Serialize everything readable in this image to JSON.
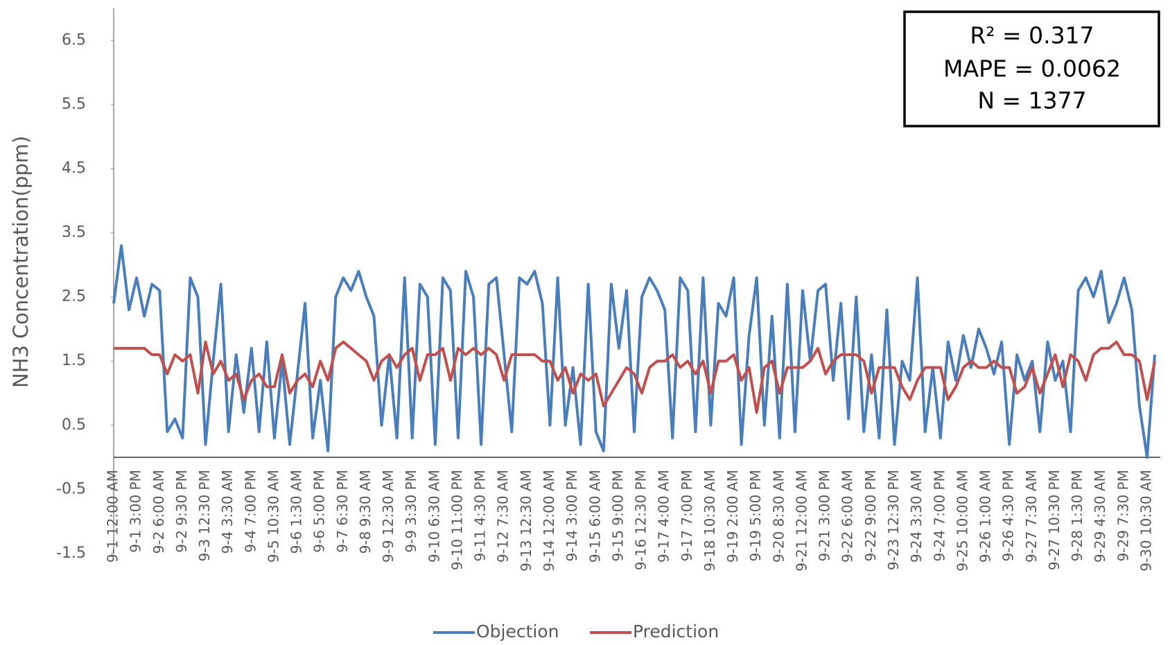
{
  "chart_data": {
    "type": "line",
    "y_label": "NH3 Concentration(ppm)",
    "annotations": [
      "R² = 0.317",
      "MAPE = 0.0062",
      "N = 1377"
    ],
    "categories": [
      "9-1 12:00 AM",
      null,
      null,
      "9-1 3:00 PM",
      null,
      null,
      "9-2 6:00 AM",
      null,
      null,
      "9-2 9:30 PM",
      null,
      null,
      "9-3 12:30 PM",
      null,
      null,
      "9-4 3:30 AM",
      null,
      null,
      "9-4 7:00 PM",
      null,
      null,
      "9-5 10:30 AM",
      null,
      null,
      "9-6 1:30 AM",
      null,
      null,
      "9-6 5:00 PM",
      null,
      null,
      "9-7 6:30 PM",
      null,
      null,
      "9-8 9:30 AM",
      null,
      null,
      "9-9 12:30 AM",
      null,
      null,
      "9-9 3:30 PM",
      null,
      null,
      "9-10 6:30 AM",
      null,
      null,
      "9-10 11:00 PM",
      null,
      null,
      "9-11 4:30 PM",
      null,
      null,
      "9-12 7:30 AM",
      null,
      null,
      "9-13 12:30 AM",
      null,
      null,
      "9-14 12:00 AM",
      null,
      null,
      "9-14 3:00 PM",
      null,
      null,
      "9-15 6:00 AM",
      null,
      null,
      "9-15 9:00 PM",
      null,
      null,
      "9-16 12:30 PM",
      null,
      null,
      "9-17 4:00 AM",
      null,
      null,
      "9-17 7:00 PM",
      null,
      null,
      "9-18 10:30 AM",
      null,
      null,
      "9-19 2:00 AM",
      null,
      null,
      "9-19 5:00 PM",
      null,
      null,
      "9-20 8:30 AM",
      null,
      null,
      "9-21 12:00 AM",
      null,
      null,
      "9-21 3:00 PM",
      null,
      null,
      "9-22 6:00 AM",
      null,
      null,
      "9-22 9:00 PM",
      null,
      null,
      "9-23 12:30 PM",
      null,
      null,
      "9-24 3:30 AM",
      null,
      null,
      "9-24 7:00 PM",
      null,
      null,
      "9-25 10:00 AM",
      null,
      null,
      "9-26 1:00 AM",
      null,
      null,
      "9-26 4:30 PM",
      null,
      null,
      "9-27 7:30 AM",
      null,
      null,
      "9-27 10:30 PM",
      null,
      null,
      "9-28 1:30 PM",
      null,
      null,
      "9-29 4:30 AM",
      null,
      null,
      "9-29 7:30 PM",
      null,
      null,
      "9-30 10:30 AM",
      null
    ],
    "series": [
      {
        "name": "Objection",
        "color": "#4a7ebb",
        "values": [
          2.4,
          3.3,
          2.3,
          2.8,
          2.2,
          2.7,
          2.6,
          0.4,
          0.6,
          0.3,
          2.8,
          2.5,
          0.2,
          1.5,
          2.7,
          0.4,
          1.6,
          0.7,
          1.7,
          0.4,
          1.8,
          0.3,
          1.5,
          0.2,
          1.3,
          2.4,
          0.3,
          1.2,
          0.1,
          2.5,
          2.8,
          2.6,
          2.9,
          2.5,
          2.2,
          0.5,
          1.6,
          0.3,
          2.8,
          0.3,
          2.7,
          2.5,
          0.2,
          2.8,
          2.6,
          0.3,
          2.9,
          2.5,
          0.2,
          2.7,
          2.8,
          1.6,
          0.4,
          2.8,
          2.7,
          2.9,
          2.4,
          0.5,
          2.8,
          0.5,
          1.4,
          0.2,
          2.7,
          0.4,
          0.1,
          2.7,
          1.7,
          2.6,
          0.4,
          2.5,
          2.8,
          2.6,
          2.3,
          0.3,
          2.8,
          2.6,
          0.4,
          2.8,
          0.5,
          2.4,
          2.2,
          2.8,
          0.2,
          1.9,
          2.8,
          0.5,
          2.2,
          0.3,
          2.7,
          0.4,
          2.6,
          1.5,
          2.6,
          2.7,
          1.2,
          2.4,
          0.6,
          2.5,
          0.4,
          1.6,
          0.3,
          2.3,
          0.2,
          1.5,
          1.2,
          2.8,
          0.4,
          1.4,
          0.3,
          1.8,
          1.2,
          1.9,
          1.4,
          2.0,
          1.7,
          1.3,
          1.8,
          0.2,
          1.6,
          1.2,
          1.5,
          0.4,
          1.8,
          1.2,
          1.5,
          0.4,
          2.6,
          2.8,
          2.5,
          2.9,
          2.1,
          2.4,
          2.8,
          2.3,
          0.8,
          0.0,
          1.6
        ]
      },
      {
        "name": "Prediction",
        "color": "#c0504d",
        "values": [
          1.7,
          1.7,
          1.7,
          1.7,
          1.7,
          1.6,
          1.6,
          1.3,
          1.6,
          1.5,
          1.6,
          1.0,
          1.8,
          1.3,
          1.5,
          1.2,
          1.3,
          0.9,
          1.2,
          1.3,
          1.1,
          1.1,
          1.6,
          1.0,
          1.2,
          1.3,
          1.1,
          1.5,
          1.2,
          1.7,
          1.8,
          1.7,
          1.6,
          1.5,
          1.2,
          1.5,
          1.6,
          1.4,
          1.6,
          1.7,
          1.2,
          1.6,
          1.6,
          1.7,
          1.2,
          1.7,
          1.6,
          1.7,
          1.6,
          1.7,
          1.6,
          1.2,
          1.6,
          1.6,
          1.6,
          1.6,
          1.5,
          1.5,
          1.2,
          1.4,
          1.0,
          1.3,
          1.2,
          1.3,
          0.8,
          1.0,
          1.2,
          1.4,
          1.3,
          1.0,
          1.4,
          1.5,
          1.5,
          1.6,
          1.4,
          1.5,
          1.3,
          1.5,
          1.0,
          1.5,
          1.5,
          1.6,
          1.2,
          1.4,
          0.7,
          1.4,
          1.5,
          1.0,
          1.4,
          1.4,
          1.4,
          1.5,
          1.7,
          1.3,
          1.5,
          1.6,
          1.6,
          1.6,
          1.5,
          1.0,
          1.4,
          1.4,
          1.4,
          1.1,
          0.9,
          1.2,
          1.4,
          1.4,
          1.4,
          0.9,
          1.1,
          1.4,
          1.5,
          1.4,
          1.4,
          1.5,
          1.4,
          1.4,
          1.0,
          1.1,
          1.4,
          1.0,
          1.3,
          1.6,
          1.1,
          1.6,
          1.5,
          1.2,
          1.6,
          1.7,
          1.7,
          1.8,
          1.6,
          1.6,
          1.5,
          0.9,
          1.5
        ]
      }
    ],
    "ylim": [
      -1.5,
      7
    ],
    "yticks": [
      -1.5,
      -0.5,
      0.5,
      1.5,
      2.5,
      3.5,
      4.5,
      5.5,
      6.5
    ],
    "legend": "bottom"
  }
}
